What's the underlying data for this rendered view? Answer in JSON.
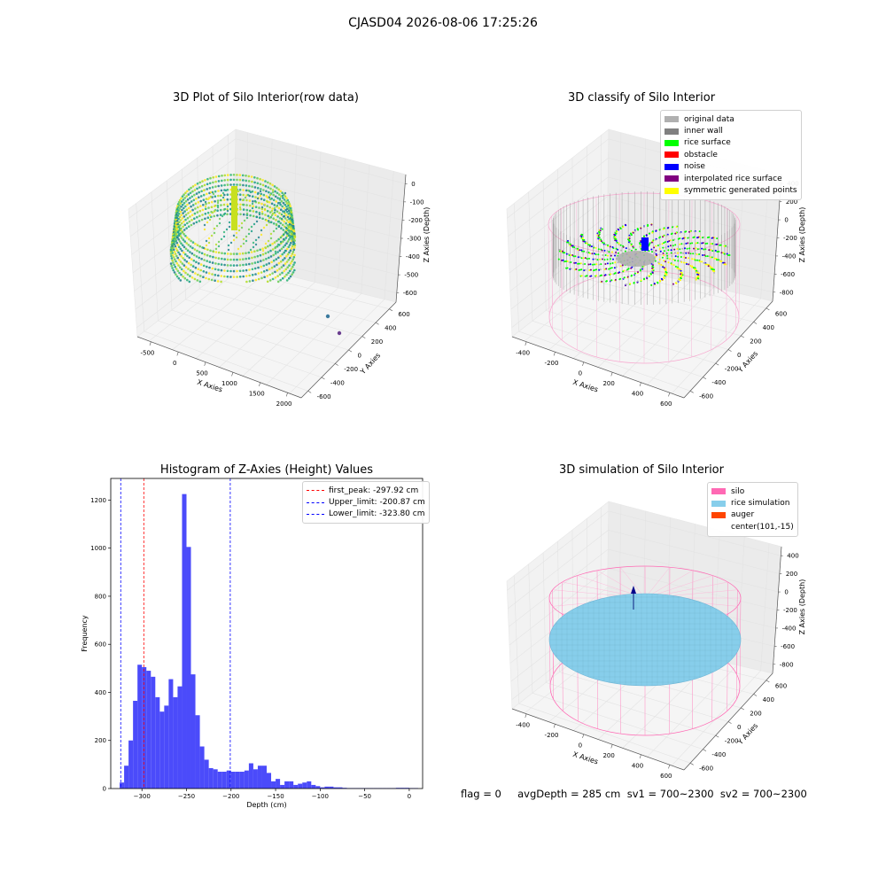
{
  "suptitle": "CJASD04 2026-08-06 17:25:26",
  "footer": "flag = 0     avgDepth = 285 cm  sv1 = 700~2300  sv2 = 700~2300",
  "chart_data": [
    {
      "type": "scatter",
      "title": "3D Plot of Silo Interior(row data)",
      "xlabel": "X Axies",
      "ylabel": "Y Axies",
      "zlabel": "Z Axies (Depth)",
      "x_ticks": [
        "-500",
        "0",
        "500",
        "1000",
        "1500",
        "2000"
      ],
      "y_ticks": [
        "600",
        "400",
        "200",
        "0",
        "-200",
        "-400",
        "-600"
      ],
      "z_ticks": [
        "0",
        "-100",
        "-200",
        "-300",
        "-400",
        "-500",
        "-600"
      ],
      "outlier_points": [
        {
          "x": 1650,
          "y": -150,
          "z": -600,
          "color": "#3b7a9e"
        },
        {
          "x": 1750,
          "y": -350,
          "z": -600,
          "color": "#6a3d8f"
        }
      ]
    },
    {
      "type": "scatter",
      "title": "3D classify of Silo Interior",
      "xlabel": "X Axies",
      "ylabel": "Y Axies",
      "zlabel": "Z Axies (Depth)",
      "x_ticks": [
        "-400",
        "-200",
        "0",
        "200",
        "400",
        "600"
      ],
      "y_ticks": [
        "600",
        "400",
        "200",
        "0",
        "-200",
        "-400",
        "-600"
      ],
      "z_ticks": [
        "400",
        "200",
        "0",
        "-200",
        "-400",
        "-600",
        "-800"
      ],
      "legend": [
        {
          "label": "original data",
          "color": "#b0b0b0"
        },
        {
          "label": "inner wall",
          "color": "#808080"
        },
        {
          "label": "rice surface",
          "color": "#00ff00"
        },
        {
          "label": "obstacle",
          "color": "#ff0000"
        },
        {
          "label": "noise",
          "color": "#0000ff"
        },
        {
          "label": "interpolated rice surface",
          "color": "#800080"
        },
        {
          "label": "symmetric generated points",
          "color": "#ffff00"
        }
      ]
    },
    {
      "type": "bar",
      "title": "Histogram of Z-Axies (Height) Values",
      "xlabel": "Depth (cm)",
      "ylabel": "Frequency",
      "xlim": [
        -335,
        15
      ],
      "ylim": [
        0,
        1290
      ],
      "x_ticks": [
        -300,
        -250,
        -200,
        -150,
        -100,
        -50,
        0
      ],
      "y_ticks": [
        0,
        200,
        400,
        600,
        800,
        1000,
        1200
      ],
      "bin_width": 5,
      "bin_starts": [
        -325,
        -320,
        -315,
        -310,
        -305,
        -300,
        -295,
        -290,
        -285,
        -280,
        -275,
        -270,
        -265,
        -260,
        -255,
        -250,
        -245,
        -240,
        -235,
        -230,
        -225,
        -220,
        -215,
        -210,
        -205,
        -200,
        -195,
        -190,
        -185,
        -180,
        -175,
        -170,
        -165,
        -160,
        -155,
        -150,
        -145,
        -140,
        -135,
        -130,
        -125,
        -120,
        -115,
        -110,
        -105,
        -100,
        -95,
        -90,
        -85,
        -80,
        -75,
        -70,
        -65,
        -60,
        -55,
        -50,
        -45,
        -40,
        -35,
        -30,
        -25,
        -20,
        -15,
        -10,
        -5,
        0,
        5
      ],
      "values": [
        25,
        95,
        200,
        365,
        515,
        505,
        490,
        465,
        380,
        320,
        345,
        455,
        380,
        425,
        1225,
        1005,
        475,
        305,
        175,
        120,
        85,
        80,
        70,
        70,
        75,
        70,
        70,
        70,
        75,
        105,
        80,
        95,
        95,
        65,
        30,
        40,
        15,
        30,
        30,
        15,
        20,
        25,
        30,
        15,
        10,
        5,
        8,
        8,
        5,
        5,
        3,
        2,
        2,
        2,
        2,
        2,
        2,
        2,
        2,
        2,
        2,
        2,
        3,
        3,
        3,
        2,
        2
      ],
      "bar_color": "#4b4bfa",
      "vlines": [
        {
          "label": "first_peak: -297.92 cm",
          "value": -297.92,
          "color": "#ff0000"
        },
        {
          "label": "Upper_limit: -200.87 cm",
          "value": -200.87,
          "color": "#0000ff"
        },
        {
          "label": "Lower_limit: -323.80 cm",
          "value": -323.8,
          "color": "#0000ff"
        }
      ]
    },
    {
      "type": "scatter",
      "title": "3D simulation of Silo Interior",
      "xlabel": "X Axies",
      "ylabel": "Y Axies",
      "zlabel": "Z Axies (Depth)",
      "x_ticks": [
        "-400",
        "-200",
        "0",
        "200",
        "400",
        "600"
      ],
      "y_ticks": [
        "600",
        "400",
        "200",
        "0",
        "-200",
        "-400",
        "-600"
      ],
      "z_ticks": [
        "400",
        "200",
        "0",
        "-200",
        "-400",
        "-600",
        "-800"
      ],
      "legend": [
        {
          "label": "silo",
          "color": "#ff69b4"
        },
        {
          "label": "rice simulation",
          "color": "#87ceeb"
        },
        {
          "label": "auger",
          "color": "#ff4500"
        },
        {
          "label": "center(101,-15)",
          "color": ""
        }
      ]
    }
  ]
}
